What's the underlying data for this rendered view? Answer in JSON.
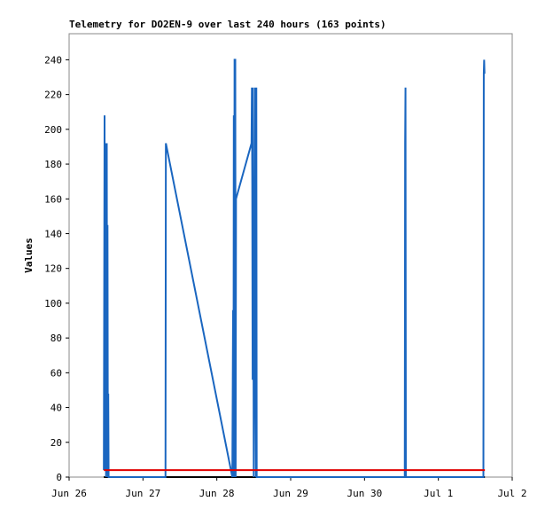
{
  "chart_data": {
    "type": "line",
    "title": "Telemetry for DO2EN-9 over last 240 hours (163 points)",
    "ylabel": "Values",
    "xlim": [
      0,
      6
    ],
    "ylim": [
      0,
      255
    ],
    "xticks": [
      {
        "value": 0,
        "label": "Jun 26"
      },
      {
        "value": 1,
        "label": "Jun 27"
      },
      {
        "value": 2,
        "label": "Jun 28"
      },
      {
        "value": 3,
        "label": "Jun 29"
      },
      {
        "value": 4,
        "label": "Jun 30"
      },
      {
        "value": 5,
        "label": "Jul 1"
      },
      {
        "value": 6,
        "label": "Jul 2"
      }
    ],
    "yticks": [
      0,
      20,
      40,
      60,
      80,
      100,
      120,
      140,
      160,
      180,
      200,
      220,
      240
    ],
    "series": [
      {
        "color": "#000000",
        "x": [
          0.47,
          5.63
        ],
        "values": [
          0,
          0
        ]
      },
      {
        "color": "#1a66c0",
        "x": [
          0.47,
          0.48,
          0.485,
          0.49,
          0.5,
          0.51,
          0.515,
          0.52,
          0.525,
          0.53,
          0.535,
          1.305,
          1.31,
          2.21,
          2.22,
          2.225,
          2.23,
          2.235,
          2.24,
          2.25,
          2.255,
          2.26,
          2.47,
          2.475,
          2.48,
          2.485,
          2.49,
          2.5,
          2.51,
          2.52,
          2.53,
          2.535,
          2.54,
          4.545,
          4.55,
          4.555,
          4.56,
          5.61,
          5.615,
          5.62,
          5.625
        ],
        "values": [
          4,
          208,
          4,
          192,
          0,
          192,
          2,
          145,
          0,
          48,
          0,
          0,
          192,
          0,
          96,
          0,
          208,
          0,
          240,
          240,
          0,
          160,
          192,
          224,
          168,
          56,
          224,
          0,
          80,
          224,
          0,
          224,
          0,
          0,
          192,
          224,
          0,
          0,
          232,
          240,
          232
        ]
      },
      {
        "color": "#e00000",
        "x": [
          0.47,
          5.63
        ],
        "values": [
          4,
          4
        ]
      }
    ]
  }
}
